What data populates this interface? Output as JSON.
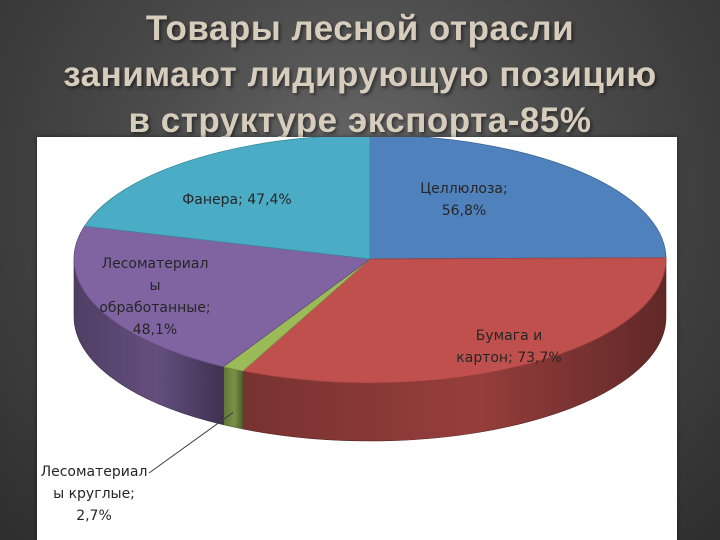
{
  "title_lines": [
    "Товары лесной отрасли",
    "занимают лидирующую позицию",
    "в структуре экспорта-85%"
  ],
  "chart_data": {
    "type": "pie",
    "style": "3d",
    "title": "Товары лесной отрасли занимают лидирующую позицию в структуре экспорта-85%",
    "categories": [
      "Целлюлоза",
      "Бумага и картон",
      "Лесоматериалы круглые",
      "Лесоматериалы обработанные",
      "Фанера"
    ],
    "values": [
      56.8,
      73.7,
      2.7,
      48.1,
      47.4
    ],
    "colors": [
      "#4f81bd",
      "#c0504d",
      "#9bbb59",
      "#8064a2",
      "#4bacc6"
    ],
    "labels": [
      [
        "Целлюлоза;",
        "56,8%"
      ],
      [
        "Бумага и",
        "картон; 73,7%"
      ],
      [
        "Лесоматериал",
        "ы круглые;",
        "2,7%"
      ],
      [
        "Лесоматериал",
        "ы",
        "обработанные;",
        "48,1%"
      ],
      [
        "Фанера; 47,4%"
      ]
    ]
  }
}
